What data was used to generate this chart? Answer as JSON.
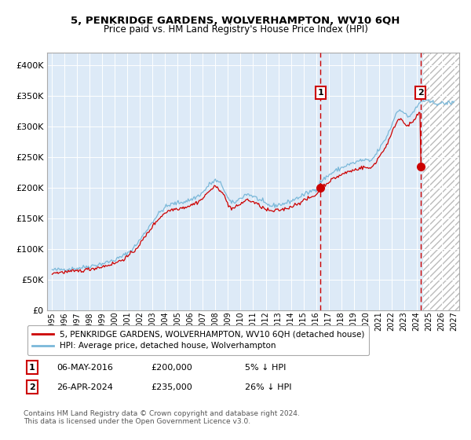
{
  "title1": "5, PENKRIDGE GARDENS, WOLVERHAMPTON, WV10 6QH",
  "title2": "Price paid vs. HM Land Registry's House Price Index (HPI)",
  "legend1": "5, PENKRIDGE GARDENS, WOLVERHAMPTON, WV10 6QH (detached house)",
  "legend2": "HPI: Average price, detached house, Wolverhampton",
  "annotation1_label": "1",
  "annotation1_date": "06-MAY-2016",
  "annotation1_price": 200000,
  "annotation2_label": "2",
  "annotation2_date": "26-APR-2024",
  "annotation2_price": 235000,
  "ann1_col1": "06-MAY-2016",
  "ann1_col2": "£200,000",
  "ann1_col3": "5% ↓ HPI",
  "ann2_col1": "26-APR-2024",
  "ann2_col2": "£235,000",
  "ann2_col3": "26% ↓ HPI",
  "hpi_color": "#7ab8d9",
  "price_color": "#cc0000",
  "background_plot": "#ddeaf7",
  "grid_color": "#ffffff",
  "ylim_min": 0,
  "ylim_max": 420000,
  "yticks": [
    0,
    50000,
    100000,
    150000,
    200000,
    250000,
    300000,
    350000,
    400000
  ],
  "xlim_min": 1994.6,
  "xlim_max": 2027.4,
  "sale1_x": 2016.37,
  "sale2_x": 2024.32,
  "future_start": 2024.55,
  "copyright": "Contains HM Land Registry data © Crown copyright and database right 2024.\nThis data is licensed under the Open Government Licence v3.0."
}
